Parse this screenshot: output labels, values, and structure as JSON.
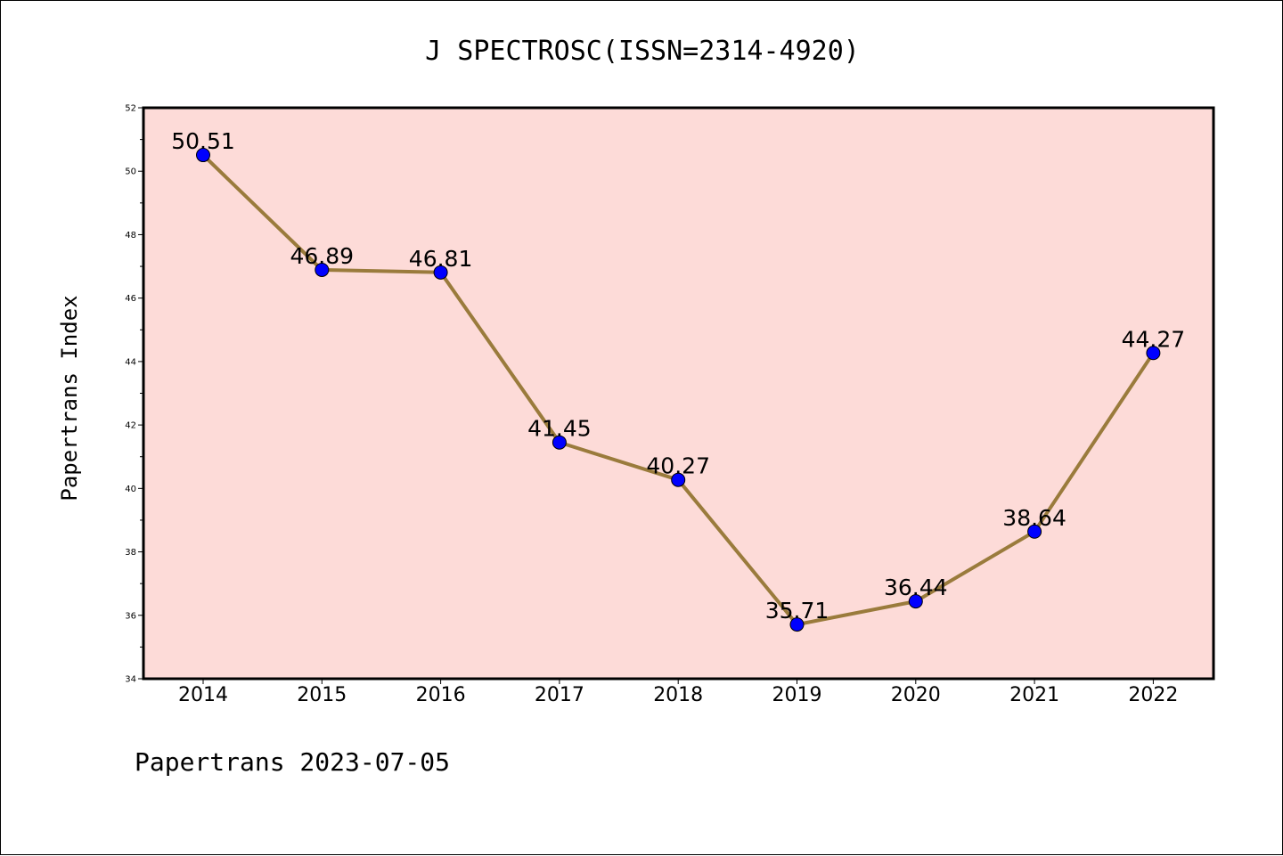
{
  "chart_data": {
    "type": "line",
    "title": "J SPECTROSC(ISSN=2314-4920)",
    "xlabel": "",
    "ylabel": "Papertrans Index",
    "categories": [
      "2014",
      "2015",
      "2016",
      "2017",
      "2018",
      "2019",
      "2020",
      "2021",
      "2022"
    ],
    "values": [
      50.51,
      46.89,
      46.81,
      41.45,
      40.27,
      35.71,
      36.44,
      38.64,
      44.27
    ],
    "data_labels": [
      "50.51",
      "46.89",
      "46.81",
      "41.45",
      "40.27",
      "35.71",
      "36.44",
      "38.64",
      "44.27"
    ],
    "ylim": [
      34,
      52
    ],
    "yticks": [
      34,
      36,
      38,
      40,
      42,
      44,
      46,
      48,
      50,
      52
    ],
    "grid": false,
    "legend": "none",
    "colors": {
      "plot_background": "#fddbd8",
      "line": "#9a7b3c",
      "marker": "#0000ff"
    }
  },
  "footer": "Papertrans 2023-07-05"
}
